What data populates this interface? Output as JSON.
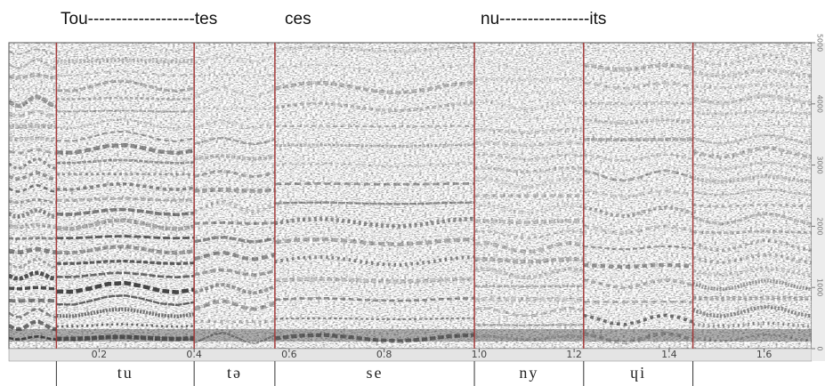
{
  "chart_data": {
    "type": "spectrogram",
    "words": [
      "Tou-------------------tes",
      "ces",
      "nu----------------its"
    ],
    "segments": [
      "tu",
      "tə",
      "se",
      "ny",
      "ɥi"
    ],
    "boundaries": [
      0.11,
      0.4,
      0.57,
      0.99,
      1.22,
      1.45
    ],
    "boundary_color": "#a33a3a",
    "xlim": [
      0.01,
      1.7
    ],
    "xticks": [
      {
        "value": 0.2,
        "label": "0.2"
      },
      {
        "value": 0.4,
        "label": "0.4"
      },
      {
        "value": 0.6,
        "label": "0.6"
      },
      {
        "value": 0.8,
        "label": "0.8"
      },
      {
        "value": 1.0,
        "label": "1.0"
      },
      {
        "value": 1.2,
        "label": "1.2"
      },
      {
        "value": 1.4,
        "label": "1.4"
      },
      {
        "value": 1.6,
        "label": "1.6"
      }
    ],
    "ylim": [
      0,
      5000
    ],
    "yticks": [
      0,
      1000,
      2000,
      3000,
      4000,
      5000
    ]
  }
}
